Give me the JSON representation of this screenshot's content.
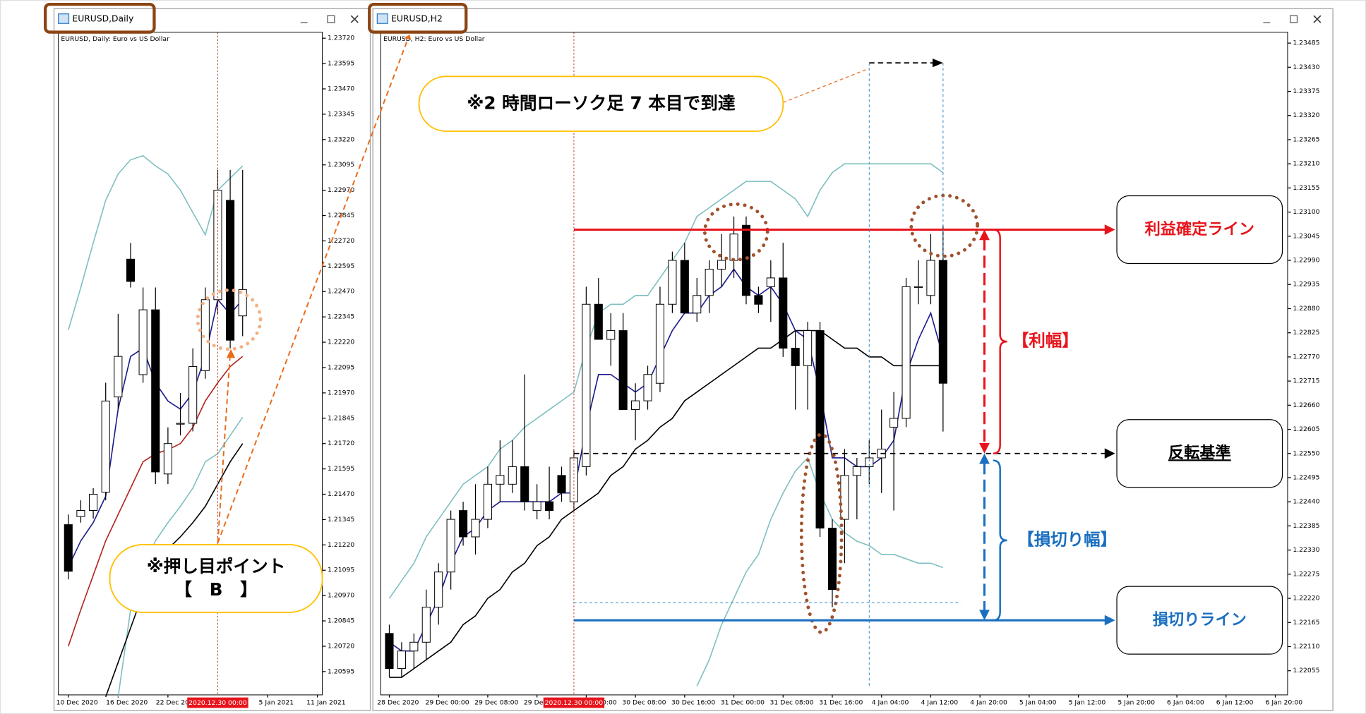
{
  "chart_data": [
    {
      "type": "candlestick",
      "title": "EURUSD,Daily",
      "subtitle": "EURUSD, Daily:  Euro vs US Dollar",
      "open": [
        1.2132,
        1.2136,
        1.2139,
        1.2148,
        1.2195,
        1.2263,
        1.2206,
        1.2238,
        1.2157,
        1.2182,
        1.2182,
        1.2208,
        1.2243,
        1.2292,
        1.2235
      ],
      "high": [
        1.2137,
        1.2144,
        1.215,
        1.2202,
        1.2236,
        1.2271,
        1.2249,
        1.2249,
        1.218,
        1.2197,
        1.2219,
        1.2249,
        1.2307,
        1.2307,
        1.2307
      ],
      "low": [
        1.2105,
        1.2133,
        1.2135,
        1.2144,
        1.2189,
        1.2249,
        1.2202,
        1.2152,
        1.2152,
        1.2176,
        1.2178,
        1.2204,
        1.2236,
        1.2219,
        1.2225
      ],
      "close": [
        1.2109,
        1.2139,
        1.2147,
        1.2193,
        1.2215,
        1.2252,
        1.2238,
        1.2158,
        1.2172,
        1.2182,
        1.221,
        1.2243,
        1.2297,
        1.2223,
        1.2248
      ],
      "up_color": "#ffffff",
      "down_color": "#000000",
      "series": [
        {
          "color": "#7fbfbf",
          "values": [
            1.2228,
            1.2249,
            1.2271,
            1.2292,
            1.2305,
            1.2312,
            1.2314,
            1.2309,
            1.2305,
            1.2297,
            1.2286,
            1.2275,
            1.2297,
            1.2303,
            1.2309
          ]
        },
        {
          "color": "#7fbfbf",
          "values": [
            null,
            null,
            null,
            null,
            1.2047,
            1.209,
            1.2111,
            1.2124,
            1.2133,
            1.2141,
            1.215,
            1.2163,
            1.2167,
            1.2176,
            1.2185
          ]
        },
        {
          "color": "#b22222",
          "values": [
            1.2072,
            1.209,
            1.2107,
            1.2124,
            1.2137,
            1.215,
            1.2163,
            1.2167,
            1.2169,
            1.2172,
            1.218,
            1.2193,
            1.2202,
            1.221,
            1.2215
          ]
        },
        {
          "color": "#000000",
          "values": [
            null,
            null,
            null,
            1.2047,
            1.2064,
            1.2081,
            1.2098,
            1.2111,
            1.212,
            1.2126,
            1.2133,
            1.2141,
            1.2152,
            1.2163,
            1.2172
          ]
        },
        {
          "color": "#1a1a8c",
          "values": [
            1.2111,
            1.2124,
            1.2133,
            1.2146,
            1.2189,
            1.2215,
            1.2219,
            1.2202,
            1.2193,
            1.2189,
            1.2197,
            1.2215,
            1.2243,
            1.2236,
            1.2243
          ]
        }
      ],
      "xlim": [
        -0.8,
        20.4
      ],
      "xticks": [
        {
          "value": 0,
          "label": "10 Dec 2020"
        },
        {
          "value": 4,
          "label": "16 Dec 2020"
        },
        {
          "value": 8,
          "label": "22 Dec 2020"
        },
        {
          "value": 16,
          "label": "5 Jan 2021"
        },
        {
          "value": 20,
          "label": "11 Jan 2021"
        }
      ],
      "cursor": {
        "value": 12,
        "label": "2020.12.30 00:00"
      },
      "ylim": [
        1.2048,
        1.2375
      ],
      "yticks": [
        {
          "value": 1.2372,
          "label": "1.23720"
        },
        {
          "value": 1.23595,
          "label": "1.23595"
        },
        {
          "value": 1.2347,
          "label": "1.23470"
        },
        {
          "value": 1.23345,
          "label": "1.23345"
        },
        {
          "value": 1.2322,
          "label": "1.23220"
        },
        {
          "value": 1.23095,
          "label": "1.23095"
        },
        {
          "value": 1.2297,
          "label": "1.22970"
        },
        {
          "value": 1.22845,
          "label": "1.22845"
        },
        {
          "value": 1.2272,
          "label": "1.22720"
        },
        {
          "value": 1.22595,
          "label": "1.22595"
        },
        {
          "value": 1.2247,
          "label": "1.22470"
        },
        {
          "value": 1.22345,
          "label": "1.22345"
        },
        {
          "value": 1.2222,
          "label": "1.22220"
        },
        {
          "value": 1.22095,
          "label": "1.22095"
        },
        {
          "value": 1.2197,
          "label": "1.21970"
        },
        {
          "value": 1.21845,
          "label": "1.21845"
        },
        {
          "value": 1.2172,
          "label": "1.21720"
        },
        {
          "value": 1.21595,
          "label": "1.21595"
        },
        {
          "value": 1.2147,
          "label": "1.21470"
        },
        {
          "value": 1.21345,
          "label": "1.21345"
        },
        {
          "value": 1.2122,
          "label": "1.21220"
        },
        {
          "value": 1.21095,
          "label": "1.21095"
        },
        {
          "value": 1.2097,
          "label": "1.20970"
        },
        {
          "value": 1.20845,
          "label": "1.20845"
        },
        {
          "value": 1.2072,
          "label": "1.20720"
        },
        {
          "value": 1.20595,
          "label": "1.20595"
        }
      ],
      "note": "※押し目ポイント",
      "note_sub": "【　B　】"
    },
    {
      "type": "candlestick",
      "title": "EURUSD,H2",
      "subtitle": "EURUSD, H2:  Euro vs US Dollar",
      "open": [
        1.2214,
        1.2206,
        1.221,
        1.2212,
        1.222,
        1.2228,
        1.2242,
        1.2236,
        1.224,
        1.2248,
        1.2248,
        1.2252,
        1.2242,
        1.2244,
        1.225,
        1.2244,
        1.2252,
        1.2289,
        1.2281,
        1.2283,
        1.2265,
        1.2267,
        1.2271,
        1.2289,
        1.2299,
        1.2287,
        1.2291,
        1.2297,
        1.2299,
        1.2307,
        1.2291,
        1.2293,
        1.2295,
        1.2279,
        1.2275,
        1.2283,
        1.2238,
        1.224,
        1.225,
        1.2252,
        1.2254,
        1.2261,
        1.2263,
        1.2293,
        1.2291,
        1.2299
      ],
      "high": [
        1.2216,
        1.2212,
        1.2214,
        1.2224,
        1.223,
        1.2242,
        1.2244,
        1.2248,
        1.2252,
        1.2258,
        1.2258,
        1.2273,
        1.2248,
        1.2252,
        1.2252,
        1.2256,
        1.2293,
        1.2295,
        1.2287,
        1.2287,
        1.2271,
        1.2275,
        1.2293,
        1.2301,
        1.2303,
        1.2295,
        1.2299,
        1.2305,
        1.2309,
        1.2309,
        1.2293,
        1.2299,
        1.2303,
        1.2283,
        1.2285,
        1.2285,
        1.224,
        1.2256,
        1.2254,
        1.2258,
        1.2265,
        1.2269,
        1.2295,
        1.2299,
        1.2305,
        1.2307
      ],
      "low": [
        1.2204,
        1.2204,
        1.2206,
        1.2208,
        1.2216,
        1.2224,
        1.2234,
        1.2232,
        1.2238,
        1.2244,
        1.2246,
        1.2242,
        1.224,
        1.224,
        1.2244,
        1.2242,
        1.225,
        1.2281,
        1.2275,
        1.2265,
        1.2258,
        1.2265,
        1.2269,
        1.2287,
        1.2287,
        1.2285,
        1.2287,
        1.2293,
        1.2295,
        1.2289,
        1.2287,
        1.2285,
        1.2277,
        1.2265,
        1.2265,
        1.2236,
        1.222,
        1.223,
        1.224,
        1.2248,
        1.2246,
        1.2242,
        1.2261,
        1.2289,
        1.2289,
        1.226
      ],
      "close": [
        1.2206,
        1.221,
        1.2212,
        1.222,
        1.2228,
        1.224,
        1.2236,
        1.224,
        1.2248,
        1.225,
        1.2252,
        1.2244,
        1.2244,
        1.2242,
        1.2246,
        1.2254,
        1.2289,
        1.2281,
        1.2283,
        1.2265,
        1.2267,
        1.2273,
        1.2289,
        1.2299,
        1.2287,
        1.2291,
        1.2297,
        1.2299,
        1.2305,
        1.2291,
        1.2289,
        1.2295,
        1.2279,
        1.2275,
        1.2283,
        1.2238,
        1.2224,
        1.225,
        1.2252,
        1.2254,
        1.2256,
        1.2263,
        1.2293,
        1.2293,
        1.2299,
        1.2271
      ],
      "up_color": "#ffffff",
      "down_color": "#000000",
      "series": [
        {
          "color": "#7fbfbf",
          "values": [
            1.2222,
            1.2226,
            1.223,
            1.2236,
            1.224,
            1.2244,
            1.2248,
            1.225,
            1.2252,
            1.2256,
            1.2258,
            1.2261,
            1.2263,
            1.2265,
            1.2267,
            1.2269,
            1.2279,
            1.2287,
            1.2289,
            1.2289,
            1.2291,
            1.2291,
            1.2295,
            1.2299,
            1.2303,
            1.2309,
            1.2311,
            1.2313,
            1.2315,
            1.2317,
            1.2317,
            1.2317,
            1.2315,
            1.2313,
            1.2309,
            1.2315,
            1.2319,
            1.2321,
            1.2321,
            1.2321,
            1.2321,
            1.2321,
            1.2321,
            1.2321,
            1.2321,
            1.2319
          ]
        },
        {
          "color": "#7fbfbf",
          "values": [
            null,
            null,
            null,
            null,
            null,
            null,
            null,
            null,
            null,
            null,
            null,
            null,
            null,
            null,
            null,
            null,
            null,
            null,
            null,
            null,
            null,
            null,
            null,
            null,
            null,
            1.2202,
            1.2208,
            1.2216,
            1.2222,
            1.2228,
            1.2232,
            1.224,
            1.2246,
            1.2251,
            1.2254,
            1.2246,
            1.224,
            1.2237,
            1.2235,
            1.2234,
            1.2232,
            1.2232,
            1.2231,
            1.223,
            1.223,
            1.2229
          ]
        },
        {
          "color": "#000000",
          "values": [
            1.2204,
            1.2204,
            1.2206,
            1.2208,
            1.221,
            1.2212,
            1.2216,
            1.2218,
            1.2222,
            1.2224,
            1.2228,
            1.223,
            1.2234,
            1.2236,
            1.224,
            1.2242,
            1.2244,
            1.2246,
            1.225,
            1.2252,
            1.2256,
            1.2258,
            1.2261,
            1.2263,
            1.2267,
            1.2269,
            1.2271,
            1.2273,
            1.2275,
            1.2277,
            1.2279,
            1.2279,
            1.2281,
            1.2283,
            1.2283,
            1.2283,
            1.2281,
            1.2279,
            1.2279,
            1.2277,
            1.2277,
            1.2275,
            1.2275,
            1.2275,
            1.2275,
            1.2275
          ]
        },
        {
          "color": "#1a1a8c",
          "values": [
            1.2212,
            1.221,
            1.221,
            1.2216,
            1.2222,
            1.223,
            1.2236,
            1.2238,
            1.2242,
            1.2244,
            1.2244,
            1.2244,
            1.2244,
            1.2244,
            1.2246,
            1.2246,
            1.2261,
            1.2273,
            1.2273,
            1.2271,
            1.2269,
            1.2271,
            1.2277,
            1.2283,
            1.2287,
            1.2287,
            1.2291,
            1.2293,
            1.2297,
            1.2293,
            1.2291,
            1.2293,
            1.2289,
            1.2283,
            1.2281,
            1.2269,
            1.2254,
            1.2254,
            1.2252,
            1.2252,
            1.2254,
            1.2258,
            1.2273,
            1.2281,
            1.2287,
            1.2277
          ]
        }
      ],
      "xlim": [
        -0.7,
        73.0
      ],
      "xticks": [
        {
          "value": 0,
          "label": "28 Dec 2020"
        },
        {
          "value": 4,
          "label": "29 Dec 00:00"
        },
        {
          "value": 8,
          "label": "29 Dec 08:00"
        },
        {
          "value": 12,
          "label": "29 Dec 16:00"
        },
        {
          "value": 16,
          "label": "30 Dec 00:00"
        },
        {
          "value": 20,
          "label": "30 Dec 08:00"
        },
        {
          "value": 24,
          "label": "30 Dec 16:00"
        },
        {
          "value": 28,
          "label": "31 Dec 00:00"
        },
        {
          "value": 32,
          "label": "31 Dec 08:00"
        },
        {
          "value": 36,
          "label": "31 Dec 16:00"
        },
        {
          "value": 40,
          "label": "4 Jan 04:00"
        },
        {
          "value": 44,
          "label": "4 Jan 12:00"
        },
        {
          "value": 48,
          "label": "4 Jan 20:00"
        },
        {
          "value": 52,
          "label": "5 Jan 04:00"
        },
        {
          "value": 56,
          "label": "5 Jan 12:00"
        },
        {
          "value": 60,
          "label": "5 Jan 20:00"
        },
        {
          "value": 64,
          "label": "6 Jan 04:00"
        },
        {
          "value": 68,
          "label": "6 Jan 12:00"
        },
        {
          "value": 72,
          "label": "6 Jan 20:00"
        }
      ],
      "cursor": {
        "value": 15,
        "label": "2020.12.30 00:00"
      },
      "ylim": [
        1.22,
        1.2351
      ],
      "yticks": [
        {
          "value": 1.23485,
          "label": "1.23485"
        },
        {
          "value": 1.2343,
          "label": "1.23430"
        },
        {
          "value": 1.23375,
          "label": "1.23375"
        },
        {
          "value": 1.2332,
          "label": "1.23320"
        },
        {
          "value": 1.23265,
          "label": "1.23265"
        },
        {
          "value": 1.2321,
          "label": "1.23210"
        },
        {
          "value": 1.23155,
          "label": "1.23155"
        },
        {
          "value": 1.231,
          "label": "1.23100"
        },
        {
          "value": 1.23045,
          "label": "1.23045"
        },
        {
          "value": 1.2299,
          "label": "1.22990"
        },
        {
          "value": 1.22935,
          "label": "1.22935"
        },
        {
          "value": 1.2288,
          "label": "1.22880"
        },
        {
          "value": 1.22825,
          "label": "1.22825"
        },
        {
          "value": 1.2277,
          "label": "1.22770"
        },
        {
          "value": 1.22715,
          "label": "1.22715"
        },
        {
          "value": 1.2266,
          "label": "1.22660"
        },
        {
          "value": 1.22605,
          "label": "1.22605"
        },
        {
          "value": 1.2255,
          "label": "1.22550"
        },
        {
          "value": 1.22495,
          "label": "1.22495"
        },
        {
          "value": 1.2244,
          "label": "1.22440"
        },
        {
          "value": 1.22385,
          "label": "1.22385"
        },
        {
          "value": 1.2233,
          "label": "1.22330"
        },
        {
          "value": 1.22275,
          "label": "1.22275"
        },
        {
          "value": 1.2222,
          "label": "1.22220"
        },
        {
          "value": 1.22165,
          "label": "1.22165"
        },
        {
          "value": 1.2211,
          "label": "1.22110"
        },
        {
          "value": 1.22055,
          "label": "1.22055"
        }
      ],
      "levels": [
        {
          "label": "利益確定ライン",
          "value": 1.2306,
          "color": "#e8141c"
        },
        {
          "label": "反転基準",
          "value": 1.2255,
          "color": "#000000"
        },
        {
          "label": "損切りライン",
          "value": 1.2217,
          "color": "#1a6fc0"
        }
      ],
      "guides": [
        1.2344,
        1.2221
      ],
      "profit_label": "【利幅】",
      "loss_label": "【損切り幅】",
      "note": "※2 時間ローソク足 7 本目で到達"
    }
  ]
}
